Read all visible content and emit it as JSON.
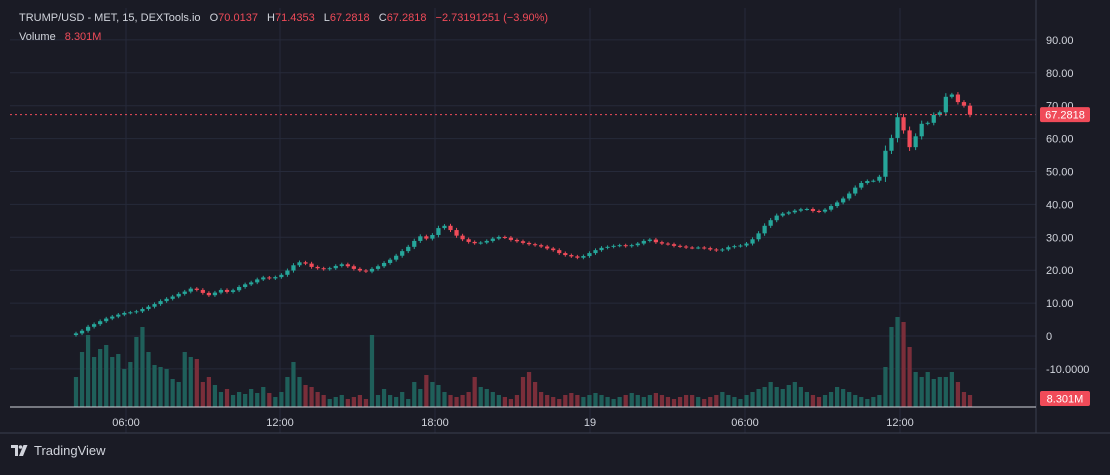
{
  "header": {
    "symbol": "TRUMP/USD - MET, 15, DEXTools.io",
    "open_label": "O",
    "open_value": "70.0137",
    "high_label": "H",
    "high_value": "71.4353",
    "low_label": "L",
    "low_value": "67.2818",
    "close_label": "C",
    "close_value": "67.2818",
    "change": "−2.73191251 (−3.90%)",
    "volume_label": "Volume",
    "volume_value": "8.301M"
  },
  "watermark": {
    "text": "TradingView",
    "icon": "tradingview-logo-icon"
  },
  "colors": {
    "background": "#1a1b25",
    "grid": "#262a3a",
    "up": "#26a69a",
    "down": "#f04b59",
    "up_volume": "#1f5f5a",
    "down_volume": "#7a2e3a",
    "last_price": "#f04b59"
  },
  "chart_data": {
    "type": "candlestick",
    "y_axis_labels": [
      "90.00",
      "80.00",
      "70.00",
      "60.00",
      "50.00",
      "40.00",
      "30.00",
      "20.00",
      "10.00",
      "0",
      "-10.0000"
    ],
    "y_axis_values": [
      90,
      80,
      70,
      60,
      50,
      40,
      30,
      20,
      10,
      0,
      -10
    ],
    "ylim": [
      -20,
      100
    ],
    "x_axis_labels": [
      "06:00",
      "12:00",
      "18:00",
      "19",
      "06:00",
      "12:00"
    ],
    "last_price_label": "67.2818",
    "last_price": 67.2818,
    "volume_label": "8.301M",
    "close": [
      0.8,
      1.6,
      2.8,
      3.6,
      4.5,
      5.3,
      5.9,
      6.5,
      7.0,
      7.2,
      7.5,
      8.2,
      8.9,
      9.7,
      10.6,
      11.3,
      12.0,
      12.8,
      13.5,
      14.4,
      14.0,
      13.1,
      12.4,
      13.2,
      14.0,
      13.4,
      13.9,
      14.9,
      15.7,
      16.3,
      17.2,
      17.8,
      17.5,
      17.9,
      18.6,
      19.9,
      21.5,
      22.4,
      22.0,
      21.0,
      20.6,
      20.3,
      20.6,
      21.3,
      21.8,
      21.2,
      20.4,
      19.9,
      19.6,
      20.4,
      21.2,
      22.2,
      23.2,
      24.4,
      25.8,
      27.1,
      28.9,
      30.3,
      29.6,
      30.7,
      32.8,
      33.5,
      32.2,
      30.5,
      29.4,
      28.6,
      28.2,
      28.4,
      28.9,
      29.6,
      30.1,
      29.9,
      29.2,
      28.8,
      28.3,
      27.9,
      27.6,
      27.2,
      26.6,
      26.1,
      25.2,
      24.6,
      24.2,
      23.8,
      24.3,
      25.2,
      26.1,
      26.8,
      27.1,
      27.4,
      27.6,
      27.3,
      27.6,
      28.1,
      28.9,
      29.3,
      28.5,
      28.1,
      27.9,
      27.4,
      27.2,
      26.9,
      26.8,
      26.9,
      26.7,
      26.3,
      26.0,
      26.3,
      27.0,
      27.3,
      27.5,
      28.1,
      29.4,
      31.2,
      33.5,
      35.2,
      36.6,
      37.2,
      37.6,
      38.1,
      38.5,
      38.6,
      38.0,
      37.8,
      38.4,
      39.5,
      40.6,
      41.8,
      43.3,
      45.1,
      46.5,
      47.1,
      47.2,
      48.4,
      56.3,
      60.2,
      66.5,
      62.5,
      57.4,
      60.7,
      64.5,
      64.8,
      67.2,
      68.0,
      72.7,
      73.4,
      71.1,
      70.0,
      67.28
    ],
    "volume_scale": "0 to 1 (relative bar height)",
    "volume": [
      0.3,
      0.55,
      0.72,
      0.5,
      0.58,
      0.62,
      0.5,
      0.53,
      0.38,
      0.45,
      0.7,
      0.8,
      0.55,
      0.42,
      0.4,
      0.38,
      0.28,
      0.25,
      0.55,
      0.5,
      0.48,
      0.25,
      0.3,
      0.22,
      0.15,
      0.18,
      0.12,
      0.15,
      0.13,
      0.18,
      0.14,
      0.2,
      0.14,
      0.1,
      0.15,
      0.3,
      0.45,
      0.3,
      0.22,
      0.2,
      0.15,
      0.12,
      0.08,
      0.1,
      0.12,
      0.08,
      0.1,
      0.12,
      0.08,
      0.72,
      0.12,
      0.18,
      0.12,
      0.1,
      0.15,
      0.08,
      0.25,
      0.18,
      0.32,
      0.25,
      0.22,
      0.15,
      0.12,
      0.1,
      0.12,
      0.15,
      0.3,
      0.2,
      0.18,
      0.15,
      0.12,
      0.1,
      0.08,
      0.12,
      0.3,
      0.35,
      0.25,
      0.15,
      0.12,
      0.1,
      0.08,
      0.12,
      0.14,
      0.12,
      0.1,
      0.12,
      0.14,
      0.12,
      0.1,
      0.08,
      0.1,
      0.12,
      0.14,
      0.12,
      0.1,
      0.12,
      0.14,
      0.12,
      0.1,
      0.08,
      0.1,
      0.12,
      0.12,
      0.1,
      0.08,
      0.1,
      0.12,
      0.15,
      0.12,
      0.1,
      0.08,
      0.12,
      0.15,
      0.18,
      0.2,
      0.25,
      0.2,
      0.18,
      0.22,
      0.25,
      0.2,
      0.15,
      0.12,
      0.1,
      0.12,
      0.15,
      0.2,
      0.18,
      0.15,
      0.12,
      0.1,
      0.08,
      0.1,
      0.12,
      0.4,
      0.8,
      0.9,
      0.85,
      0.6,
      0.35,
      0.3,
      0.35,
      0.28,
      0.3,
      0.3,
      0.35,
      0.25,
      0.15,
      0.12
    ]
  }
}
